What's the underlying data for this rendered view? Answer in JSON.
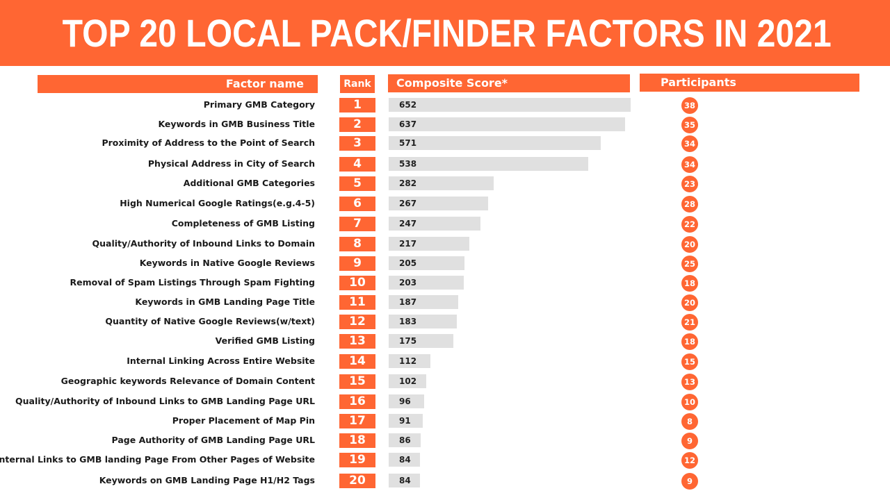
{
  "title": "TOP 20 LOCAL PACK/FINDER FACTORS IN 2021",
  "headers": {
    "factor": "Factor name",
    "rank": "Rank",
    "score": "Composite Score*",
    "participants": "Participants"
  },
  "colors": {
    "accent": "#ff6633",
    "bar": "#e0e0e0"
  },
  "chart_data": {
    "type": "bar",
    "orientation": "horizontal",
    "title": "TOP 20 LOCAL PACK/FINDER FACTORS IN 2021",
    "xlim": [
      0,
      652
    ],
    "rows": [
      {
        "rank": "1",
        "factor": "Primary GMB Category",
        "score": 652,
        "participants": 38
      },
      {
        "rank": "2",
        "factor": "Keywords in GMB Business Title",
        "score": 637,
        "participants": 35
      },
      {
        "rank": "3",
        "factor": "Proximity of Address to the Point of Search",
        "score": 571,
        "participants": 34
      },
      {
        "rank": "4",
        "factor": "Physical Address in City of Search",
        "score": 538,
        "participants": 34
      },
      {
        "rank": "5",
        "factor": "Additional GMB Categories",
        "score": 282,
        "participants": 23
      },
      {
        "rank": "6",
        "factor": "High Numerical Google Ratings(e.g.4-5)",
        "score": 267,
        "participants": 28
      },
      {
        "rank": "7",
        "factor": "Completeness of GMB Listing",
        "score": 247,
        "participants": 22
      },
      {
        "rank": "8",
        "factor": "Quality/Authority of Inbound Links to Domain",
        "score": 217,
        "participants": 20
      },
      {
        "rank": "9",
        "factor": "Keywords in Native Google Reviews",
        "score": 205,
        "participants": 25
      },
      {
        "rank": "10",
        "factor": "Removal of Spam Listings Through Spam Fighting",
        "score": 203,
        "participants": 18
      },
      {
        "rank": "11",
        "factor": "Keywords in GMB Landing Page Title",
        "score": 187,
        "participants": 20
      },
      {
        "rank": "12",
        "factor": "Quantity of Native Google Reviews(w/text)",
        "score": 183,
        "participants": 21
      },
      {
        "rank": "13",
        "factor": "Verified GMB Listing",
        "score": 175,
        "participants": 18
      },
      {
        "rank": "14",
        "factor": "Internal Linking Across Entire Website",
        "score": 112,
        "participants": 15
      },
      {
        "rank": "15",
        "factor": "Geographic keywords Relevance of Domain Content",
        "score": 102,
        "participants": 13
      },
      {
        "rank": "16",
        "factor": "Quality/Authority of Inbound Links to GMB Landing Page URL",
        "score": 96,
        "participants": 10
      },
      {
        "rank": "17",
        "factor": "Proper Placement of Map Pin",
        "score": 91,
        "participants": 8
      },
      {
        "rank": "18",
        "factor": "Page Authority of GMB Landing Page URL",
        "score": 86,
        "participants": 9
      },
      {
        "rank": "19",
        "factor": "Internal Links to GMB landing Page From Other Pages of Website",
        "score": 84,
        "participants": 12
      },
      {
        "rank": "20",
        "factor": "Keywords on GMB Landing Page H1/H2 Tags",
        "score": 84,
        "participants": 9
      }
    ]
  }
}
